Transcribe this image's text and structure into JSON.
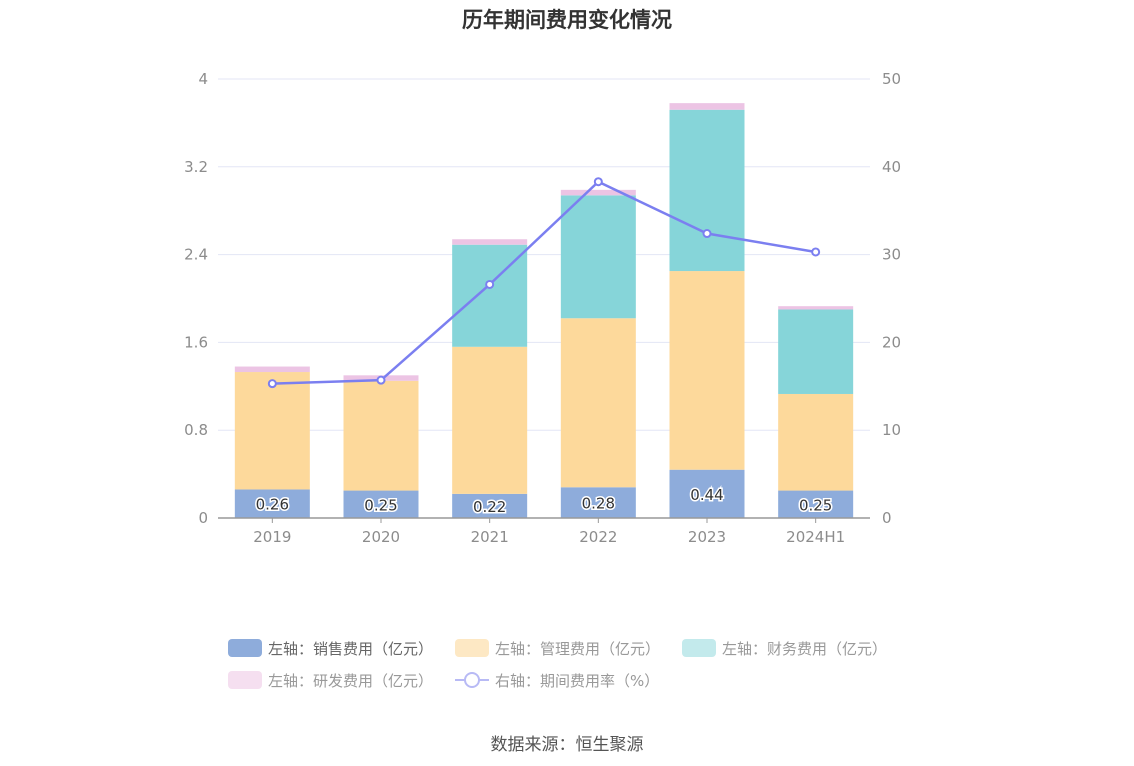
{
  "colors": {
    "sales": "#8eacdb",
    "admin": "#fdd99b",
    "finance": "#86d5d9",
    "rnd": "#ecc4e4",
    "rate": "#7b7ff0",
    "grid": "#e3e6f5",
    "axis": "#999999"
  },
  "chart_data": {
    "type": "bar",
    "title": "历年期间费用变化情况",
    "categories": [
      "2019",
      "2020",
      "2021",
      "2022",
      "2023",
      "2024H1"
    ],
    "left_axis": {
      "min": 0,
      "max": 4,
      "ticks": [
        "0",
        "0.8",
        "1.6",
        "2.4",
        "3.2",
        "4"
      ]
    },
    "right_axis": {
      "min": 0,
      "max": 50,
      "ticks": [
        "0",
        "10",
        "20",
        "30",
        "40",
        "50"
      ]
    },
    "series": [
      {
        "key": "sales",
        "name": "左轴：销售费用（亿元）",
        "axis": "left",
        "stack": true,
        "values": [
          0.26,
          0.25,
          0.22,
          0.28,
          0.44,
          0.25
        ],
        "labels": [
          "0.26",
          "0.25",
          "0.22",
          "0.28",
          "0.44",
          "0.25"
        ]
      },
      {
        "key": "admin",
        "name": "左轴：管理费用（亿元）",
        "axis": "left",
        "stack": true,
        "values": [
          1.07,
          1.0,
          1.34,
          1.54,
          1.81,
          0.88
        ]
      },
      {
        "key": "finance",
        "name": "左轴：财务费用（亿元）",
        "axis": "left",
        "stack": true,
        "values": [
          0.0,
          0.0,
          0.93,
          1.12,
          1.47,
          0.77
        ]
      },
      {
        "key": "rnd",
        "name": "左轴：研发费用（亿元）",
        "axis": "left",
        "stack": true,
        "values": [
          0.05,
          0.05,
          0.05,
          0.05,
          0.06,
          0.03
        ]
      },
      {
        "key": "rate",
        "name": "右轴：期间费用率（%）",
        "axis": "right",
        "type": "line",
        "values": [
          15.3,
          15.7,
          26.6,
          38.3,
          32.4,
          30.3
        ]
      }
    ],
    "legend_position": "bottom"
  },
  "source": "数据来源：恒生聚源"
}
